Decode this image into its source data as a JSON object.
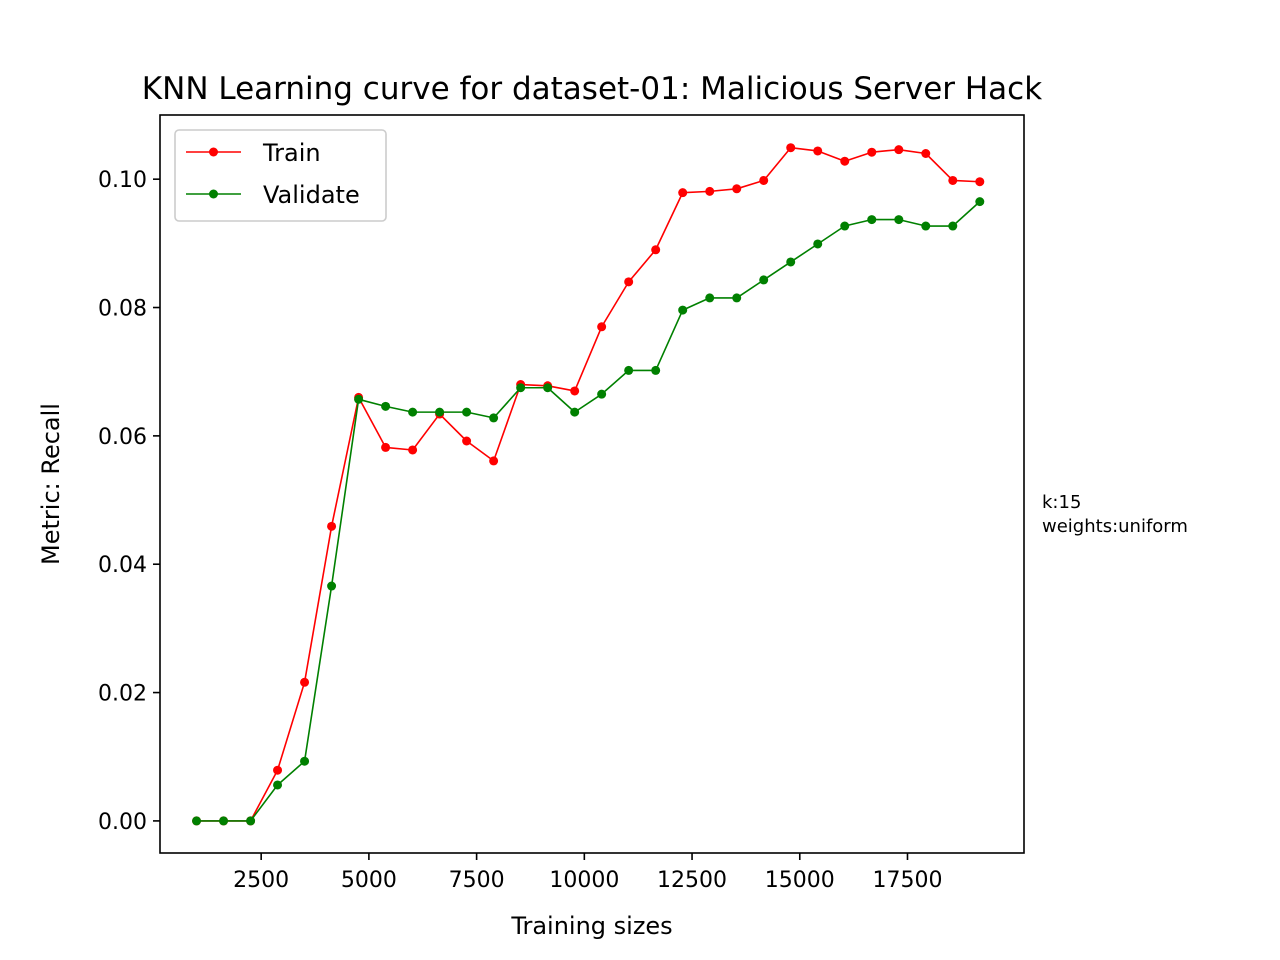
{
  "chart_data": {
    "type": "line",
    "title": "KNN Learning curve for dataset-01: Malicious Server Hack",
    "xlabel": "Training sizes",
    "ylabel": "Metric: Recall",
    "xlim": [
      152,
      20204
    ],
    "ylim": [
      -0.005,
      0.11
    ],
    "x_ticks": [
      2500,
      5000,
      7500,
      10000,
      12500,
      15000,
      17500
    ],
    "y_ticks": [
      0.0,
      0.02,
      0.04,
      0.06,
      0.08,
      0.1
    ],
    "y_tick_labels": [
      "0.00",
      "0.02",
      "0.04",
      "0.06",
      "0.08",
      "0.10"
    ],
    "legend": {
      "position": "upper left"
    },
    "annotation": [
      "k:15",
      "weights:uniform"
    ],
    "x": [
      1000,
      1627,
      2254,
      2880,
      3507,
      4134,
      4761,
      5388,
      6015,
      6641,
      7268,
      7895,
      8522,
      9149,
      9776,
      10402,
      11029,
      11656,
      12283,
      12910,
      13537,
      14163,
      14790,
      15417,
      16044,
      16671,
      17298,
      17924,
      18551,
      19178
    ],
    "series": [
      {
        "name": "Train",
        "color": "#ff0000",
        "values": [
          0.0,
          0.0,
          0.0,
          0.0079,
          0.0216,
          0.0459,
          0.066,
          0.0582,
          0.0578,
          0.0634,
          0.0592,
          0.0561,
          0.068,
          0.0678,
          0.067,
          0.077,
          0.084,
          0.089,
          0.0979,
          0.0981,
          0.0985,
          0.0998,
          0.1049,
          0.1044,
          0.1028,
          0.1042,
          0.1046,
          0.104,
          0.0998,
          0.0996
        ]
      },
      {
        "name": "Validate",
        "color": "#008000",
        "values": [
          0.0,
          0.0,
          0.0,
          0.0056,
          0.0093,
          0.0366,
          0.0657,
          0.0646,
          0.0637,
          0.0637,
          0.0637,
          0.0628,
          0.0675,
          0.0675,
          0.0637,
          0.0665,
          0.0702,
          0.0702,
          0.0796,
          0.0815,
          0.0815,
          0.0843,
          0.0871,
          0.0899,
          0.0927,
          0.0937,
          0.0937,
          0.0927,
          0.0927,
          0.0965
        ]
      }
    ]
  }
}
